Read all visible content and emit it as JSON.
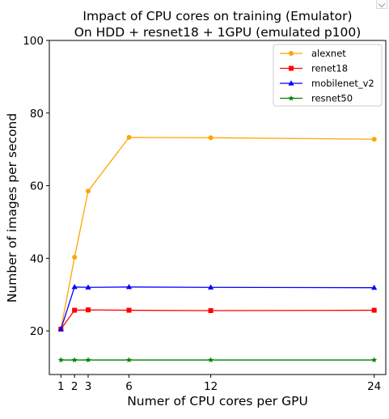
{
  "chart_data": {
    "type": "line",
    "title": [
      "Impact of CPU cores on training (Emulator)",
      "On HDD + resnet18 + 1GPU (emulated p100)"
    ],
    "xlabel": "Numer of CPU cores per GPU",
    "ylabel": "Number of images per second",
    "x": [
      1,
      2,
      3,
      6,
      12,
      24
    ],
    "xticks": [
      1,
      2,
      3,
      6,
      12,
      24
    ],
    "yticks": [
      20,
      40,
      60,
      80,
      100
    ],
    "xlim": [
      0.15,
      24.85
    ],
    "ylim": [
      8,
      100
    ],
    "grid": false,
    "legend": "top-right",
    "series": [
      {
        "name": "alexnet",
        "color": "#ffa500",
        "marker": "circle",
        "values": [
          20.5,
          40.3,
          58.5,
          73.3,
          73.2,
          72.8
        ]
      },
      {
        "name": "renet18",
        "color": "#ff0000",
        "marker": "square",
        "values": [
          20.5,
          25.7,
          25.8,
          25.7,
          25.6,
          25.7
        ]
      },
      {
        "name": "mobilenet_v2",
        "color": "#0000ff",
        "marker": "triangle",
        "values": [
          20.5,
          32.1,
          32.0,
          32.1,
          32.0,
          31.9
        ]
      },
      {
        "name": "resnet50",
        "color": "#008000",
        "marker": "star",
        "values": [
          12.0,
          12.0,
          12.0,
          12.0,
          12.0,
          12.0
        ]
      }
    ]
  }
}
